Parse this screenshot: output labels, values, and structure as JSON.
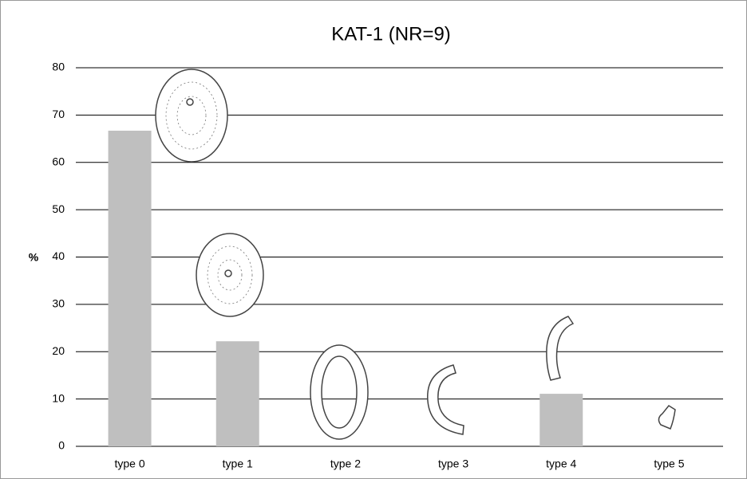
{
  "chart_data": {
    "type": "bar",
    "title": "KAT-1 (NR=9)",
    "y_label": "%",
    "categories": [
      "type 0",
      "type 1",
      "type 2",
      "type 3",
      "type 4",
      "type 5"
    ],
    "values": [
      66.7,
      22.2,
      0,
      0,
      11.1,
      0
    ],
    "color": "#bfbfbf",
    "ylim": [
      0,
      80
    ],
    "yticks": [
      0,
      10,
      20,
      30,
      40,
      50,
      60,
      70,
      80
    ],
    "grid": true
  }
}
